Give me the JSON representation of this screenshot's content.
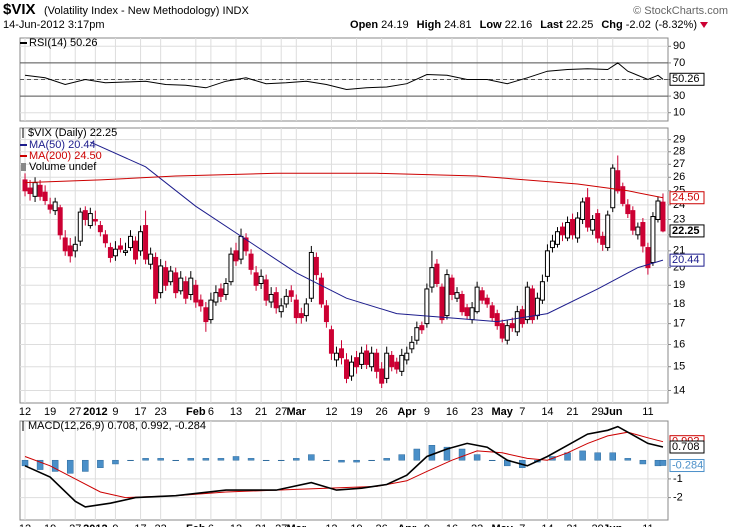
{
  "header": {
    "symbol": "$VIX",
    "description": "(Volatility Index - New Methodology) INDX",
    "source": "© StockCharts.com",
    "timestamp": "14-Jun-2012 3:17pm",
    "quote": [
      {
        "label": "Open",
        "value": 24.19
      },
      {
        "label": "High",
        "value": 24.81
      },
      {
        "label": "Low",
        "value": 22.16
      },
      {
        "label": "Last",
        "value": 22.25
      },
      {
        "label": "Chg",
        "value": -2.02
      }
    ],
    "change_pct": "(-8.32%)"
  },
  "chart_data": [
    {
      "type": "line",
      "xlim": [
        -1,
        128
      ],
      "ylim": [
        0,
        100
      ],
      "yticks": [
        10,
        30,
        50,
        70,
        90
      ],
      "levels": [
        30,
        50,
        70
      ],
      "grid": true,
      "series": [
        {
          "name": "RSI(14) 50.26",
          "color": "#000000",
          "x": [
            0,
            4,
            8,
            12,
            16,
            20,
            24,
            28,
            32,
            36,
            40,
            44,
            48,
            52,
            56,
            60,
            64,
            68,
            72,
            76,
            80,
            84,
            88,
            92,
            96,
            100,
            104,
            108,
            112,
            116,
            118,
            120,
            124,
            126,
            127
          ],
          "values": [
            55,
            52,
            44,
            50,
            46,
            47,
            48,
            44,
            43,
            40,
            48,
            52,
            45,
            46,
            48,
            44,
            38,
            40,
            41,
            45,
            56,
            55,
            50,
            50,
            45,
            52,
            60,
            62,
            63,
            62,
            70,
            60,
            50,
            55,
            50.26
          ]
        }
      ]
    },
    {
      "type": "candlestick",
      "label": "$VIX (Daily) 22.25",
      "volume_label": "Volume undef",
      "log_scale": true,
      "grid": true,
      "xlim": [
        -1,
        128
      ],
      "ylim": [
        13.5,
        30
      ],
      "yticks": [
        14,
        15,
        16,
        17,
        18,
        19,
        20,
        21,
        22,
        23,
        24,
        25,
        26,
        27,
        28,
        29
      ],
      "up_color": "#000000",
      "down_color": "#cc0033",
      "xticks": [
        {
          "value": 0,
          "label": "12"
        },
        {
          "value": 5,
          "label": "19"
        },
        {
          "value": 10,
          "label": "27"
        },
        {
          "value": 14,
          "label": "2012"
        },
        {
          "value": 18,
          "label": "9"
        },
        {
          "value": 23,
          "label": "17"
        },
        {
          "value": 27,
          "label": "23"
        },
        {
          "value": 34,
          "label": "Feb"
        },
        {
          "value": 37,
          "label": "6"
        },
        {
          "value": 42,
          "label": "13"
        },
        {
          "value": 47,
          "label": "21"
        },
        {
          "value": 51,
          "label": "27"
        },
        {
          "value": 54,
          "label": "Mar"
        },
        {
          "value": 61,
          "label": "12"
        },
        {
          "value": 66,
          "label": "19"
        },
        {
          "value": 71,
          "label": "26"
        },
        {
          "value": 76,
          "label": "Apr"
        },
        {
          "value": 80,
          "label": "9"
        },
        {
          "value": 85,
          "label": "16"
        },
        {
          "value": 90,
          "label": "23"
        },
        {
          "value": 95,
          "label": "May"
        },
        {
          "value": 99,
          "label": "7"
        },
        {
          "value": 104,
          "label": "14"
        },
        {
          "value": 109,
          "label": "21"
        },
        {
          "value": 114,
          "label": "29"
        },
        {
          "value": 117,
          "label": "Jun"
        },
        {
          "value": 124,
          "label": "11"
        }
      ],
      "open": [
        25.8,
        25.2,
        24.6,
        25.4,
        24.9,
        24.0,
        23.6,
        23.8,
        21.8,
        21.3,
        21.0,
        21.6,
        23.6,
        22.6,
        23.0,
        22.6,
        22.0,
        21.2,
        20.7,
        21.3,
        20.9,
        21.2,
        21.6,
        21.0,
        22.6,
        20.2,
        20.6,
        18.6,
        20.0,
        19.2,
        19.7,
        18.7,
        19.2,
        18.5,
        19.0,
        18.2,
        17.8,
        17.2,
        18.1,
        18.8,
        18.5,
        19.2,
        21.0,
        20.5,
        21.8,
        20.8,
        19.7,
        19.1,
        19.3,
        18.1,
        18.6,
        17.6,
        18.0,
        18.7,
        18.2,
        17.5,
        17.4,
        18.3,
        20.6,
        19.4,
        17.9,
        16.7,
        15.3,
        15.8,
        15.3,
        14.6,
        15.4,
        15.1,
        15.7,
        15.0,
        15.6,
        14.9,
        14.5,
        15.5,
        15.2,
        14.8,
        15.3,
        15.8,
        16.2,
        16.9,
        17.0,
        18.9,
        20.2,
        18.9,
        17.4,
        19.4,
        18.3,
        18.5,
        17.8,
        17.2,
        17.6,
        18.7,
        18.3,
        17.9,
        17.5,
        17.0,
        16.2,
        17.0,
        16.6,
        17.7,
        17.2,
        18.8,
        17.4,
        18.2,
        19.5,
        21.2,
        21.4,
        22.5,
        21.8,
        23.0,
        21.8,
        23.0,
        24.5,
        22.3,
        23.4,
        21.9,
        21.2,
        23.8,
        26.5,
        25.3,
        24.0,
        23.6,
        22.0,
        22.8,
        21.2,
        20.3,
        23.0,
        24.19
      ],
      "high": [
        26.3,
        25.8,
        26.0,
        25.8,
        25.4,
        24.5,
        24.5,
        24.0,
        22.3,
        21.8,
        21.9,
        23.8,
        23.9,
        23.8,
        23.6,
        22.9,
        22.3,
        21.5,
        21.6,
        21.8,
        21.5,
        22.3,
        21.9,
        22.6,
        23.6,
        21.2,
        20.9,
        20.5,
        20.4,
        20.1,
        20.0,
        19.8,
        19.5,
        19.8,
        19.3,
        18.5,
        18.1,
        18.6,
        19.0,
        19.1,
        19.4,
        21.2,
        21.5,
        22.4,
        22.1,
        21.1,
        20.1,
        19.9,
        19.6,
        18.9,
        18.9,
        18.3,
        18.8,
        19.0,
        18.5,
        17.8,
        18.3,
        21.3,
        20.9,
        19.7,
        18.2,
        16.9,
        15.9,
        16.2,
        15.6,
        15.5,
        15.7,
        15.9,
        16.0,
        15.9,
        15.8,
        15.2,
        15.9,
        15.7,
        15.4,
        15.8,
        15.9,
        16.4,
        17.1,
        17.1,
        19.1,
        21.0,
        20.5,
        19.1,
        19.9,
        19.6,
        18.9,
        18.7,
        18.0,
        18.1,
        19.2,
        18.9,
        18.5,
        18.1,
        17.7,
        17.2,
        17.2,
        17.3,
        17.9,
        17.9,
        19.2,
        19.0,
        18.6,
        19.6,
        21.4,
        22.0,
        22.5,
        22.8,
        23.2,
        23.4,
        23.5,
        24.5,
        25.2,
        23.3,
        23.7,
        22.2,
        23.6,
        27.0,
        27.7,
        25.6,
        24.4,
        23.9,
        22.8,
        23.1,
        21.5,
        23.5,
        24.6,
        24.81
      ],
      "low": [
        24.6,
        24.3,
        24.2,
        24.3,
        24.0,
        23.4,
        23.3,
        21.7,
        20.7,
        20.3,
        20.6,
        21.3,
        22.6,
        22.4,
        22.6,
        21.9,
        21.2,
        20.3,
        20.4,
        20.9,
        20.7,
        21.0,
        20.2,
        20.7,
        20.2,
        19.9,
        18.0,
        18.3,
        18.7,
        19.0,
        18.3,
        18.5,
        18.0,
        18.2,
        17.8,
        17.6,
        16.6,
        17.0,
        17.9,
        18.1,
        18.2,
        19.0,
        20.1,
        20.2,
        20.7,
        19.6,
        18.7,
        18.8,
        17.9,
        17.8,
        17.5,
        17.3,
        17.8,
        18.1,
        17.0,
        17.0,
        17.1,
        18.1,
        19.3,
        17.8,
        16.8,
        15.3,
        15.0,
        15.1,
        14.3,
        14.4,
        14.7,
        14.9,
        14.9,
        14.8,
        14.5,
        14.1,
        14.3,
        14.8,
        14.7,
        14.6,
        15.1,
        15.6,
        16.0,
        16.5,
        16.8,
        18.6,
        18.9,
        17.0,
        17.2,
        18.2,
        18.1,
        17.4,
        17.2,
        17.0,
        17.5,
        18.0,
        17.8,
        17.1,
        16.7,
        16.1,
        16.0,
        16.6,
        16.4,
        16.8,
        17.0,
        17.0,
        17.2,
        18.0,
        19.2,
        20.9,
        21.2,
        21.6,
        21.6,
        21.7,
        21.5,
        22.7,
        22.2,
        22.0,
        21.5,
        21.0,
        21.0,
        23.5,
        24.8,
        23.9,
        23.1,
        22.0,
        21.7,
        20.9,
        19.6,
        20.1,
        22.8,
        22.16
      ],
      "close": [
        25.0,
        24.8,
        25.6,
        24.6,
        24.3,
        23.7,
        24.2,
        22.0,
        21.0,
        20.7,
        21.4,
        23.5,
        23.0,
        23.4,
        22.9,
        22.2,
        21.5,
        20.6,
        21.1,
        21.1,
        21.0,
        21.9,
        20.5,
        22.2,
        20.5,
        20.8,
        18.3,
        20.1,
        19.0,
        19.8,
        18.6,
        19.4,
        18.3,
        19.4,
        18.1,
        17.9,
        17.1,
        18.2,
        18.6,
        18.4,
        19.1,
        20.8,
        20.4,
        21.9,
        21.0,
        19.9,
        19.0,
        19.5,
        18.2,
        18.5,
        17.8,
        17.9,
        18.4,
        18.4,
        17.3,
        17.3,
        18.0,
        20.9,
        19.6,
        18.0,
        17.1,
        15.6,
        15.6,
        15.4,
        14.5,
        15.2,
        15.0,
        15.6,
        15.1,
        15.6,
        14.8,
        14.3,
        15.6,
        15.0,
        14.9,
        15.5,
        15.6,
        16.1,
        16.8,
        16.7,
        18.8,
        20.0,
        19.1,
        17.2,
        19.6,
        18.5,
        18.6,
        17.6,
        17.4,
        17.8,
        18.9,
        18.2,
        18.0,
        17.3,
        16.9,
        16.3,
        16.9,
        16.8,
        17.6,
        17.0,
        18.9,
        17.2,
        18.3,
        19.2,
        21.0,
        21.6,
        22.2,
        22.0,
        22.8,
        22.0,
        23.1,
        24.2,
        22.5,
        23.0,
        21.8,
        21.4,
        23.3,
        26.7,
        25.0,
        24.1,
        23.4,
        22.3,
        22.5,
        21.3,
        20.0,
        23.2,
        24.27,
        22.25
      ],
      "series": [
        {
          "name": "MA(50) 20.44",
          "color": "#1c1c8c",
          "x": [
            13,
            24,
            34,
            44,
            54,
            64,
            74,
            84,
            94,
            104,
            114,
            122,
            127
          ],
          "values": [
            28.8,
            26.8,
            23.9,
            21.7,
            19.7,
            18.3,
            17.5,
            17.3,
            17.1,
            17.5,
            18.8,
            20.0,
            20.44
          ]
        },
        {
          "name": "MA(200) 24.50",
          "color": "#cc0000",
          "x": [
            0,
            15,
            30,
            50,
            70,
            90,
            110,
            120,
            127
          ],
          "values": [
            25.6,
            25.8,
            26.1,
            26.3,
            26.3,
            26.1,
            25.5,
            25.0,
            24.5
          ],
          "value_labels": [
            null,
            null,
            null,
            null,
            null,
            null,
            null,
            null,
            "24.50"
          ]
        }
      ]
    },
    {
      "type": "line",
      "label": "MACD(12,26,9) 0.708, 0.992, -0.284",
      "xlim": [
        -1,
        128
      ],
      "ylim": [
        -3.2,
        2.1
      ],
      "yticks": [
        -2,
        -1
      ],
      "grid": true,
      "xticks": [
        {
          "value": 0,
          "label": "12"
        },
        {
          "value": 5,
          "label": "19"
        },
        {
          "value": 10,
          "label": "27"
        },
        {
          "value": 14,
          "label": "2012"
        },
        {
          "value": 18,
          "label": "9"
        },
        {
          "value": 23,
          "label": "17"
        },
        {
          "value": 27,
          "label": "23"
        },
        {
          "value": 34,
          "label": "Feb"
        },
        {
          "value": 37,
          "label": "6"
        },
        {
          "value": 42,
          "label": "13"
        },
        {
          "value": 47,
          "label": "21"
        },
        {
          "value": 51,
          "label": "27"
        },
        {
          "value": 54,
          "label": "Mar"
        },
        {
          "value": 61,
          "label": "12"
        },
        {
          "value": 66,
          "label": "19"
        },
        {
          "value": 71,
          "label": "26"
        },
        {
          "value": 76,
          "label": "Apr"
        },
        {
          "value": 80,
          "label": "9"
        },
        {
          "value": 85,
          "label": "16"
        },
        {
          "value": 90,
          "label": "23"
        },
        {
          "value": 95,
          "label": "May"
        },
        {
          "value": 99,
          "label": "7"
        },
        {
          "value": 104,
          "label": "14"
        },
        {
          "value": 109,
          "label": "21"
        },
        {
          "value": 114,
          "label": "29"
        },
        {
          "value": 117,
          "label": "Jun"
        },
        {
          "value": 124,
          "label": "11"
        }
      ],
      "histogram": {
        "color": "#4a8fc8",
        "x": [
          0,
          3,
          6,
          9,
          12,
          15,
          18,
          21,
          24,
          27,
          30,
          33,
          36,
          39,
          42,
          45,
          48,
          51,
          54,
          57,
          60,
          63,
          66,
          69,
          72,
          75,
          78,
          81,
          84,
          87,
          90,
          93,
          96,
          99,
          102,
          105,
          108,
          111,
          114,
          117,
          120,
          123,
          126,
          127
        ],
        "values": [
          -0.3,
          -0.5,
          -0.6,
          -0.7,
          -0.6,
          -0.4,
          -0.2,
          0.0,
          0.1,
          0.1,
          0.0,
          0.1,
          0.1,
          0.1,
          0.2,
          0.1,
          0.0,
          0.0,
          0.1,
          0.3,
          0.0,
          -0.1,
          -0.1,
          0.0,
          0.1,
          0.3,
          0.6,
          0.8,
          0.7,
          0.6,
          0.3,
          0.0,
          -0.3,
          -0.4,
          -0.1,
          0.2,
          0.4,
          0.5,
          0.4,
          0.4,
          0.1,
          -0.2,
          -0.3,
          -0.284
        ]
      },
      "series": [
        {
          "color": "#cc0000",
          "x": [
            0,
            5,
            10,
            15,
            20,
            30,
            40,
            50,
            60,
            70,
            76,
            80,
            85,
            90,
            95,
            100,
            104,
            108,
            112,
            116,
            120,
            124,
            127
          ],
          "values": [
            0.2,
            -0.3,
            -1.0,
            -1.7,
            -2.0,
            -1.9,
            -1.7,
            -1.6,
            -1.5,
            -1.4,
            -1.1,
            -0.6,
            0.0,
            0.5,
            0.4,
            0.1,
            0.0,
            0.4,
            0.9,
            1.3,
            1.5,
            1.2,
            0.992
          ]
        },
        {
          "color": "#000000",
          "x": [
            0,
            5,
            10,
            12,
            17,
            22,
            30,
            40,
            50,
            57,
            62,
            67,
            72,
            76,
            80,
            84,
            88,
            92,
            96,
            100,
            104,
            108,
            112,
            116,
            118,
            120,
            122,
            124,
            127
          ],
          "values": [
            -0.3,
            -0.9,
            -2.2,
            -2.5,
            -2.3,
            -2.0,
            -1.9,
            -1.6,
            -1.6,
            -1.2,
            -1.6,
            -1.5,
            -1.3,
            -0.8,
            0.2,
            0.6,
            0.9,
            0.7,
            0.0,
            -0.3,
            0.2,
            0.8,
            1.4,
            1.6,
            1.8,
            1.5,
            1.2,
            0.9,
            0.708
          ]
        }
      ]
    }
  ]
}
